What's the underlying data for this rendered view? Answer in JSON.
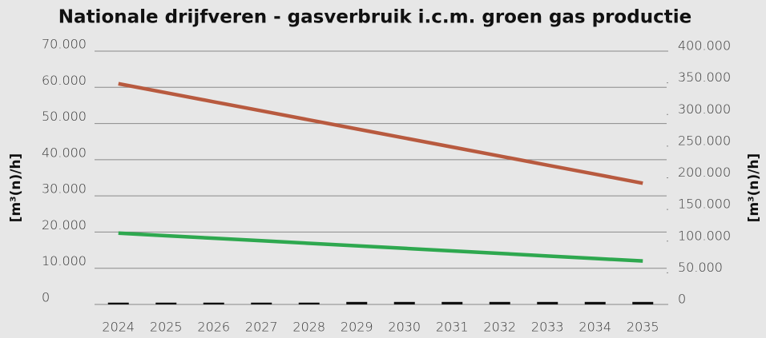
{
  "chart_data": {
    "type": "line",
    "title": "Nationale drijfveren - gasverbruik i.c.m. groen gas productie",
    "y_label": "[m³(n)/h]",
    "y2_label": "[m³(n)/h]",
    "categories": [
      "2024",
      "2025",
      "2026",
      "2027",
      "2028",
      "2029",
      "2030",
      "2031",
      "2032",
      "2033",
      "2034",
      "2035"
    ],
    "series": [
      {
        "type": "line",
        "color": "#b85a3f",
        "values": [
          61000,
          58500,
          56000,
          53500,
          51000,
          48500,
          46000,
          43500,
          41000,
          38500,
          36000,
          33500
        ]
      },
      {
        "type": "line",
        "color": "#2ea84f",
        "values": [
          19700,
          19000,
          18300,
          17600,
          16900,
          16200,
          15500,
          14800,
          14100,
          13400,
          12700,
          12000
        ]
      },
      {
        "type": "bar",
        "color": "#111111",
        "values": [
          500,
          500,
          500,
          500,
          500,
          700,
          700,
          700,
          700,
          700,
          700,
          700
        ]
      }
    ],
    "ylim": [
      0,
      70000
    ],
    "yticks": [
      {
        "value": 0,
        "label": "0"
      },
      {
        "value": 10000,
        "label": "10.000"
      },
      {
        "value": 20000,
        "label": "20.000"
      },
      {
        "value": 30000,
        "label": "30.000"
      },
      {
        "value": 40000,
        "label": "40.000"
      },
      {
        "value": 50000,
        "label": "50.000"
      },
      {
        "value": 60000,
        "label": "60.000"
      },
      {
        "value": 70000,
        "label": "70.000"
      }
    ],
    "y2lim": [
      0,
      400000
    ],
    "y2ticks": [
      {
        "value": 0,
        "label": "0"
      },
      {
        "value": 50000,
        "label": "50.000"
      },
      {
        "value": 100000,
        "label": "100.000"
      },
      {
        "value": 150000,
        "label": "150.000"
      },
      {
        "value": 200000,
        "label": "200.000"
      },
      {
        "value": 250000,
        "label": "250.000"
      },
      {
        "value": 300000,
        "label": "300.000"
      },
      {
        "value": 350000,
        "label": "350.000"
      },
      {
        "value": 400000,
        "label": "400.000"
      }
    ],
    "grid": true
  }
}
